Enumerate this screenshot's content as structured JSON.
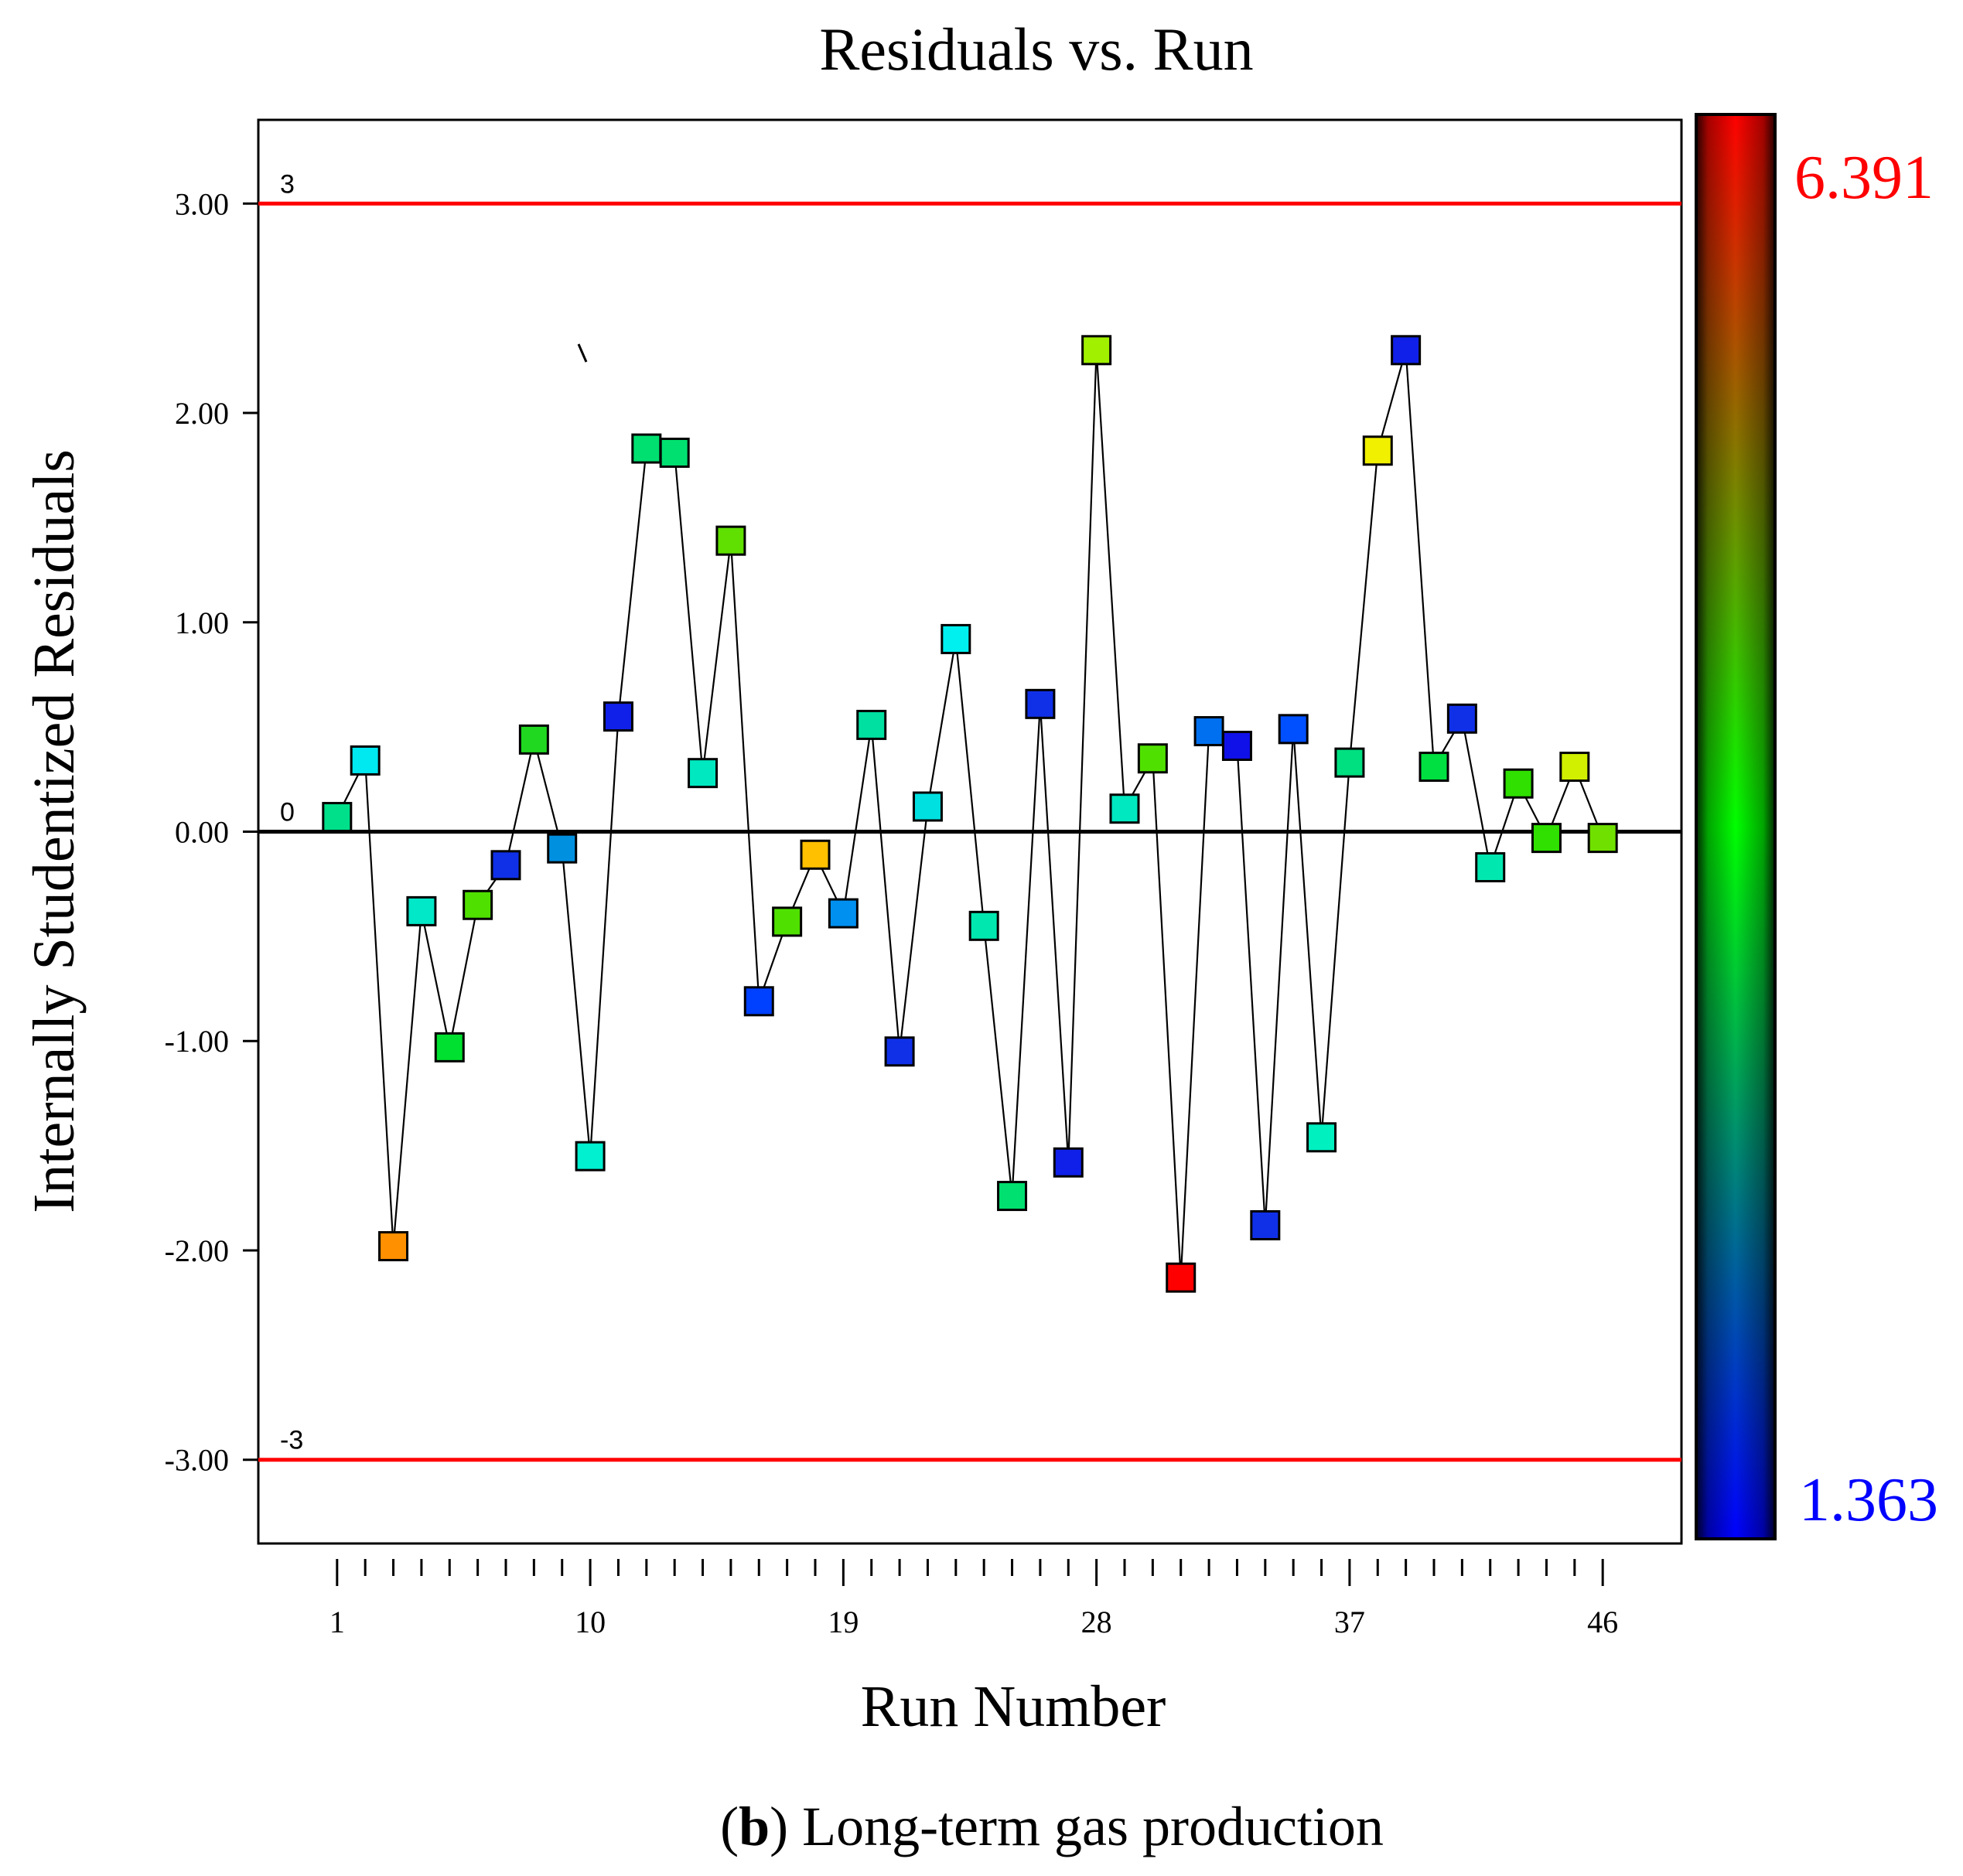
{
  "chart_data": {
    "type": "scatter",
    "title": "Residuals vs. Run",
    "xlabel": "Run Number",
    "ylabel": "Internally Studentized Residuals",
    "caption_bold": "b",
    "caption_rest": ") Long-term gas production",
    "caption_open": "(",
    "x_tick_labels": [
      "1",
      "10",
      "19",
      "28",
      "37",
      "46"
    ],
    "x_ticks_major": [
      1,
      10,
      19,
      28,
      37,
      46
    ],
    "xlim": [
      -1.8,
      48.8
    ],
    "y_tick_labels": [
      "3.00",
      "2.00",
      "1.00",
      "0.00",
      "-1.00",
      "-2.00",
      "-3.00"
    ],
    "y_ticks": [
      3,
      2,
      1,
      0,
      -1,
      -2,
      -3
    ],
    "ylim": [
      -3.4,
      3.4
    ],
    "reference_lines": [
      {
        "value": 3,
        "label": "3",
        "color": "#ff0000"
      },
      {
        "value": 0,
        "label": "0",
        "color": "#000000"
      },
      {
        "value": -3,
        "label": "-3",
        "color": "#ff0000"
      }
    ],
    "colorbar": {
      "max_label": "6.391",
      "min_label": "1.363",
      "max_color": "#ff0000",
      "min_color": "#0000ff"
    },
    "series": [
      {
        "name": "Residuals",
        "x": [
          1,
          2,
          3,
          4,
          5,
          6,
          7,
          8,
          9,
          10,
          11,
          12,
          13,
          14,
          15,
          16,
          17,
          18,
          19,
          20,
          21,
          22,
          23,
          24,
          25,
          26,
          27,
          28,
          29,
          30,
          31,
          32,
          33,
          34,
          35,
          36,
          37,
          38,
          39,
          40,
          41,
          42,
          43,
          44,
          45,
          46
        ],
        "values": [
          0.07,
          0.34,
          -1.98,
          -0.38,
          -1.03,
          -0.35,
          -0.16,
          0.44,
          -0.08,
          -1.55,
          0.55,
          1.83,
          1.81,
          0.28,
          1.39,
          -0.81,
          -0.43,
          -0.11,
          -0.39,
          0.51,
          -1.05,
          0.12,
          0.92,
          -0.45,
          -1.74,
          0.61,
          -1.58,
          2.3,
          0.11,
          0.35,
          -2.13,
          0.48,
          0.41,
          -1.88,
          0.49,
          -1.46,
          0.33,
          1.82,
          2.3,
          0.31,
          0.54,
          -0.17,
          0.23,
          -0.03,
          0.31,
          -0.03
        ],
        "colors": [
          "#00e08a",
          "#00e8f0",
          "#ff9000",
          "#00e8c8",
          "#00e030",
          "#50e000",
          "#1030e8",
          "#20d820",
          "#0090e0",
          "#00f0d0",
          "#1020e8",
          "#00e070",
          "#00e070",
          "#00e8c0",
          "#60e000",
          "#0040ff",
          "#50e000",
          "#ffc000",
          "#0090f0",
          "#00e0a0",
          "#1030e8",
          "#00e0e0",
          "#00f0f0",
          "#00e8b0",
          "#00e070",
          "#1030e8",
          "#1020e8",
          "#a0f000",
          "#00e8c0",
          "#50e000",
          "#ff0000",
          "#0070f0",
          "#1010e8",
          "#1030e8",
          "#0050ff",
          "#00f0c0",
          "#00e080",
          "#f0f000",
          "#1020e8",
          "#00e040",
          "#1030e8",
          "#00e8b0",
          "#30e000",
          "#30e000",
          "#d0f000",
          "#70e000"
        ]
      }
    ]
  }
}
